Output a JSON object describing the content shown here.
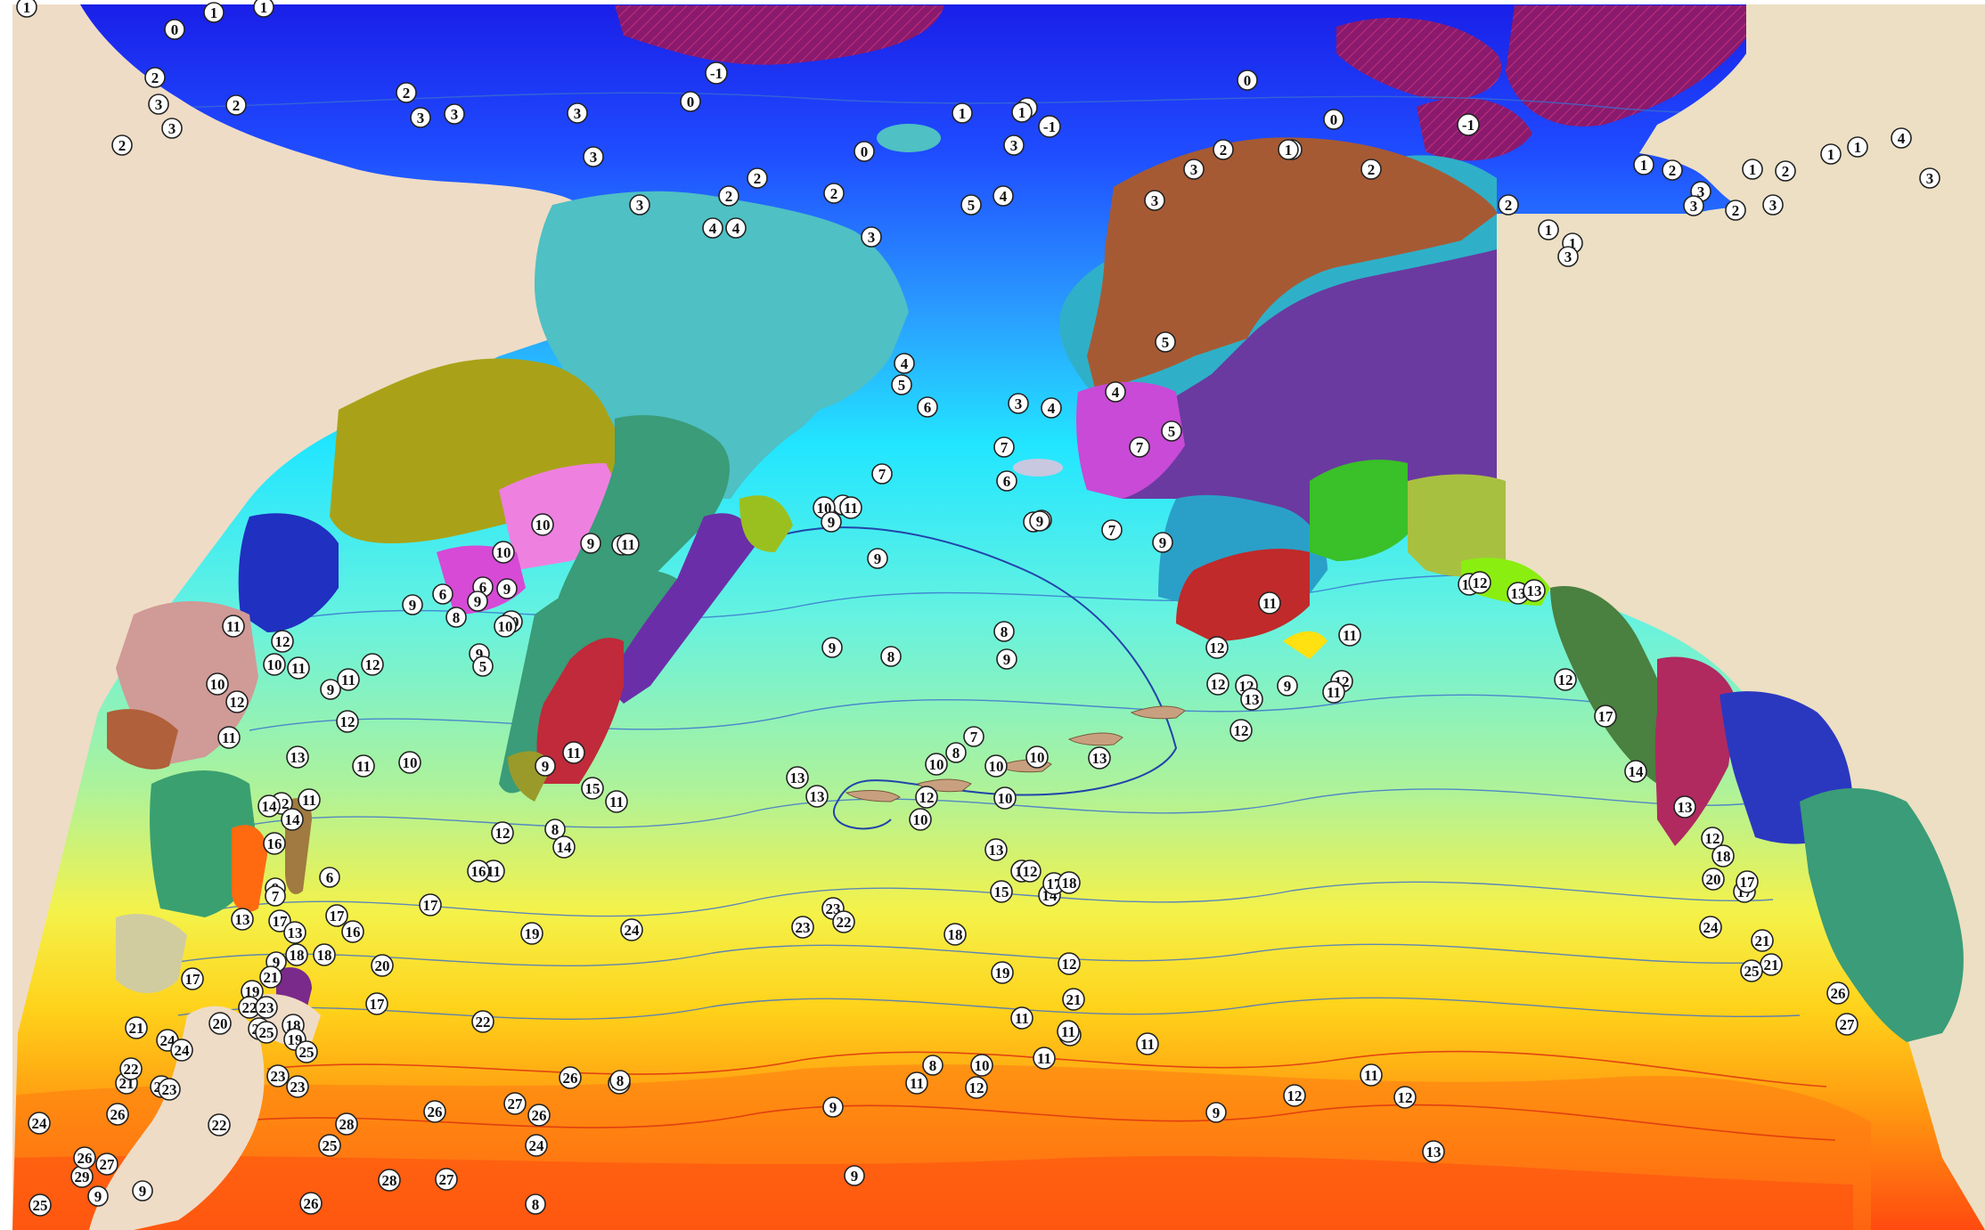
{
  "map": {
    "colors": {
      "land": "#efdcc6",
      "land_east": "#ecdfc3",
      "sea_ice": "#8a1f6a",
      "cold_water": "#1f3cff",
      "temperate_water": "#7af2dc",
      "warm_water": "#ffee22",
      "hot_water": "#ff5a10",
      "contour": "#3377cc",
      "contour_warm": "#dd3311"
    },
    "labels": [
      "1",
      "0",
      "1",
      "1",
      "2",
      "3",
      "3",
      "2",
      "2",
      "3",
      "2",
      "3",
      "3",
      "-1",
      "0",
      "3",
      "3",
      "2",
      "2",
      "4",
      "4",
      "2",
      "3",
      "3",
      "-1",
      "0",
      "2",
      "1",
      "3",
      "5",
      "4",
      "3",
      "2",
      "1",
      "2",
      "0",
      "-1",
      "1",
      "0",
      "0",
      "1",
      "2",
      "1",
      "1",
      "3",
      "1",
      "3",
      "2",
      "3",
      "2",
      "3",
      "1",
      "2",
      "1",
      "1",
      "4",
      "3",
      "5",
      "4",
      "4",
      "5",
      "6",
      "3",
      "4",
      "5",
      "7",
      "7",
      "6",
      "7",
      "6",
      "7",
      "7",
      "7",
      "9",
      "9",
      "11",
      "10",
      "10",
      "9",
      "9",
      "10",
      "9",
      "6",
      "6",
      "9",
      "10",
      "10",
      "11",
      "9",
      "8",
      "9",
      "5",
      "9",
      "11",
      "12",
      "10",
      "12",
      "12",
      "11",
      "10",
      "11",
      "11",
      "12",
      "11",
      "10",
      "12",
      "13",
      "11",
      "14",
      "11",
      "15",
      "11",
      "9",
      "8",
      "14",
      "16",
      "14",
      "11",
      "9",
      "6",
      "7",
      "12",
      "17",
      "16",
      "19",
      "13",
      "17",
      "17",
      "9",
      "13",
      "18",
      "16",
      "20",
      "21",
      "17",
      "19",
      "22",
      "17",
      "18",
      "20",
      "18",
      "19",
      "21",
      "22",
      "23",
      "24",
      "21",
      "25",
      "23",
      "24",
      "22",
      "24",
      "26",
      "23",
      "22",
      "26",
      "25",
      "25",
      "23",
      "26",
      "26",
      "27",
      "27",
      "25",
      "28",
      "24",
      "24",
      "29",
      "26",
      "27",
      "28",
      "27",
      "26",
      "25",
      "9",
      "9",
      "8",
      "9",
      "9",
      "8",
      "8",
      "9",
      "9",
      "8",
      "9",
      "8",
      "9",
      "7",
      "8",
      "10",
      "10",
      "10",
      "10",
      "10",
      "12",
      "13",
      "13",
      "13",
      "13",
      "11",
      "12",
      "14",
      "15",
      "17",
      "18",
      "19",
      "18",
      "23",
      "24",
      "23",
      "22",
      "21",
      "12",
      "11",
      "11",
      "11",
      "11",
      "11",
      "10",
      "11",
      "12",
      "9",
      "12",
      "11",
      "12",
      "13",
      "12",
      "12",
      "11",
      "11",
      "12",
      "11",
      "12",
      "13",
      "12",
      "9",
      "12",
      "12",
      "12",
      "13",
      "13",
      "17",
      "14",
      "13",
      "12",
      "20",
      "18",
      "17",
      "17",
      "21",
      "21",
      "24",
      "25",
      "26",
      "27"
    ]
  }
}
